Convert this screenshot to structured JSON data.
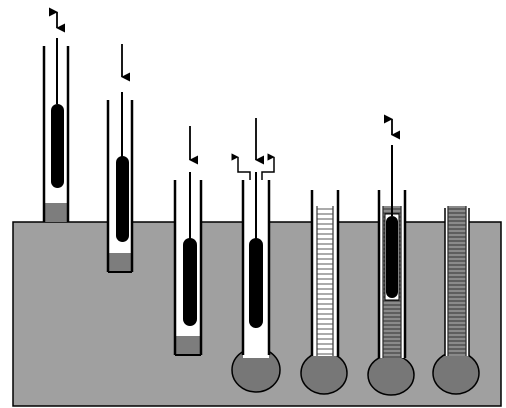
{
  "diagram": {
    "stages": [
      {
        "id": 1,
        "motion": "up-down",
        "cased_hole": false,
        "lateral_returns": false,
        "bulb": false,
        "cage": "none",
        "element": "tool",
        "bottom_plug": true
      },
      {
        "id": 2,
        "motion": "down",
        "cased_hole": true,
        "lateral_returns": false,
        "bulb": false,
        "cage": "none",
        "element": "tool",
        "bottom_plug": true
      },
      {
        "id": 3,
        "motion": "down",
        "cased_hole": true,
        "lateral_returns": false,
        "bulb": false,
        "cage": "none",
        "element": "tool",
        "bottom_plug": true
      },
      {
        "id": 4,
        "motion": "down",
        "cased_hole": true,
        "lateral_returns": true,
        "bulb": true,
        "cage": "none",
        "element": "tool",
        "bottom_plug": false
      },
      {
        "id": 5,
        "motion": "none",
        "cased_hole": true,
        "lateral_returns": false,
        "bulb": true,
        "cage": "light",
        "element": "none",
        "bottom_plug": false
      },
      {
        "id": 6,
        "motion": "up-down",
        "cased_hole": true,
        "lateral_returns": false,
        "bulb": true,
        "cage": "dark",
        "element": "tool-in-cage",
        "bottom_plug": false
      },
      {
        "id": 7,
        "motion": "none",
        "cased_hole": false,
        "lateral_returns": false,
        "bulb": true,
        "cage": "dark",
        "element": "none",
        "bottom_plug": false
      }
    ],
    "colors": {
      "ground": "#a0a0a0",
      "ink": "#000000",
      "background": "#ffffff",
      "plug": "#7d7d7d",
      "bulb": "#777777",
      "cage_dark": "#555555"
    }
  }
}
